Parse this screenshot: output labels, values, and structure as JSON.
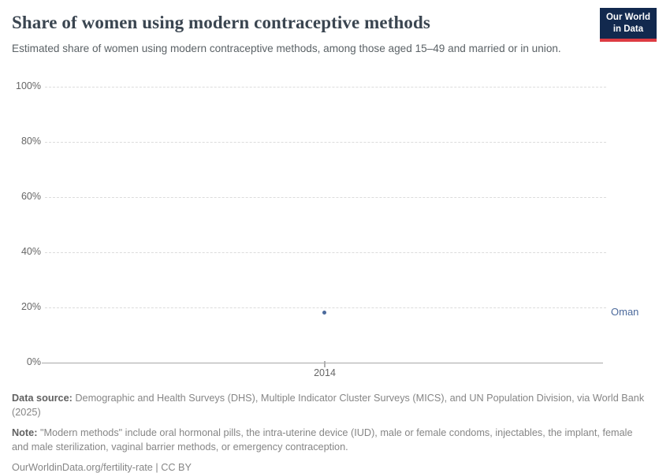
{
  "header": {
    "title": "Share of women using modern contraceptive methods",
    "subtitle": "Estimated share of women using modern contraceptive methods, among those aged 15–49 and married or in union.",
    "logo": {
      "line1": "Our World",
      "line2": "in Data"
    }
  },
  "chart_data": {
    "type": "scatter",
    "title": "Share of women using modern contraceptive methods",
    "xlabel": "",
    "ylabel": "",
    "ylim": [
      0,
      100
    ],
    "yticks_top_to_bottom": [
      "100%",
      "80%",
      "60%",
      "40%",
      "20%",
      "0%"
    ],
    "xticks": [
      "2014"
    ],
    "grid": "horizontal-dashed",
    "series": [
      {
        "name": "Oman",
        "color": "#4c6a9c",
        "points": [
          {
            "x": 2014,
            "y": 18.2
          }
        ]
      }
    ]
  },
  "footer": {
    "datasource_label": "Data source:",
    "datasource_text": " Demographic and Health Surveys (DHS), Multiple Indicator Cluster Surveys (MICS), and UN Population Division, via World Bank (2025)",
    "note_label": "Note:",
    "note_text": " \"Modern methods\" include oral hormonal pills, the intra-uterine device (IUD), male or female condoms, injectables, the implant, female and male sterilization, vaginal barrier methods, or emergency contraception.",
    "url_line": "OurWorldinData.org/fertility-rate | CC BY"
  },
  "colors": {
    "accent_series": "#4c6a9c",
    "logo_navy": "#12294e",
    "logo_red": "#dd3b42",
    "title_text": "#3a4550",
    "muted_text": "#868686"
  }
}
